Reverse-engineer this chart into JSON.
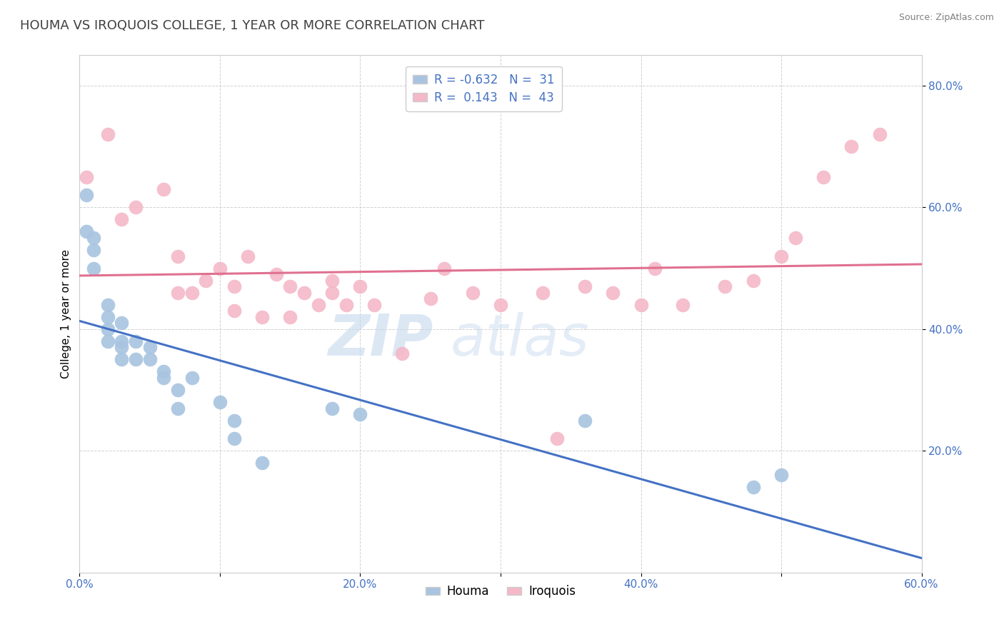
{
  "title": "HOUMA VS IROQUOIS COLLEGE, 1 YEAR OR MORE CORRELATION CHART",
  "source_text": "Source: ZipAtlas.com",
  "ylabel": "College, 1 year or more",
  "xlim": [
    0.0,
    0.6
  ],
  "ylim": [
    0.0,
    0.85
  ],
  "xtick_labels": [
    "0.0%",
    "",
    "20.0%",
    "",
    "40.0%",
    "",
    "60.0%"
  ],
  "xtick_vals": [
    0.0,
    0.1,
    0.2,
    0.3,
    0.4,
    0.5,
    0.6
  ],
  "ytick_labels": [
    "20.0%",
    "40.0%",
    "60.0%",
    "80.0%"
  ],
  "ytick_vals": [
    0.2,
    0.4,
    0.6,
    0.8
  ],
  "legend_labels": [
    "Houma",
    "Iroquois"
  ],
  "houma_color": "#a8c4e0",
  "iroquois_color": "#f4b8c8",
  "houma_line_color": "#4472c4",
  "iroquois_line_color": "#e07090",
  "R_houma": -0.632,
  "N_houma": 31,
  "R_iroquois": 0.143,
  "N_iroquois": 43,
  "legend_text_color": "#4472c4",
  "houma_x": [
    0.005,
    0.005,
    0.01,
    0.01,
    0.01,
    0.02,
    0.02,
    0.02,
    0.02,
    0.03,
    0.03,
    0.03,
    0.03,
    0.04,
    0.04,
    0.05,
    0.05,
    0.06,
    0.06,
    0.07,
    0.07,
    0.08,
    0.1,
    0.11,
    0.11,
    0.13,
    0.18,
    0.2,
    0.36,
    0.48,
    0.5
  ],
  "houma_y": [
    0.62,
    0.56,
    0.55,
    0.53,
    0.5,
    0.44,
    0.42,
    0.4,
    0.38,
    0.41,
    0.38,
    0.37,
    0.35,
    0.38,
    0.35,
    0.37,
    0.35,
    0.33,
    0.32,
    0.3,
    0.27,
    0.32,
    0.28,
    0.25,
    0.22,
    0.18,
    0.27,
    0.26,
    0.25,
    0.14,
    0.16
  ],
  "iroquois_x": [
    0.005,
    0.02,
    0.03,
    0.04,
    0.06,
    0.07,
    0.07,
    0.08,
    0.09,
    0.1,
    0.11,
    0.11,
    0.12,
    0.13,
    0.14,
    0.15,
    0.15,
    0.16,
    0.17,
    0.18,
    0.18,
    0.19,
    0.2,
    0.21,
    0.23,
    0.25,
    0.26,
    0.28,
    0.3,
    0.33,
    0.34,
    0.36,
    0.38,
    0.4,
    0.41,
    0.43,
    0.46,
    0.48,
    0.5,
    0.51,
    0.53,
    0.55,
    0.57
  ],
  "iroquois_y": [
    0.65,
    0.72,
    0.58,
    0.6,
    0.63,
    0.46,
    0.52,
    0.46,
    0.48,
    0.5,
    0.47,
    0.43,
    0.52,
    0.42,
    0.49,
    0.47,
    0.42,
    0.46,
    0.44,
    0.48,
    0.46,
    0.44,
    0.47,
    0.44,
    0.36,
    0.45,
    0.5,
    0.46,
    0.44,
    0.46,
    0.22,
    0.47,
    0.46,
    0.44,
    0.5,
    0.44,
    0.47,
    0.48,
    0.52,
    0.55,
    0.65,
    0.7,
    0.72
  ],
  "watermark_part1": "ZIP",
  "watermark_part2": "atlas",
  "title_fontsize": 13,
  "axis_label_fontsize": 11,
  "tick_fontsize": 11
}
